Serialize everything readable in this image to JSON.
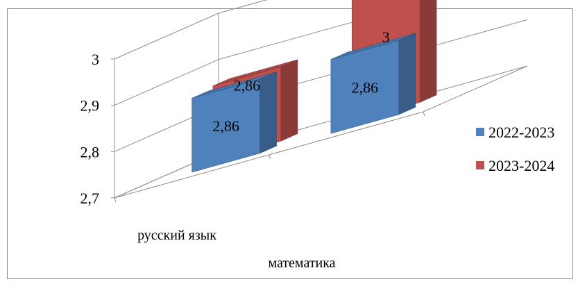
{
  "chart_data": {
    "type": "bar",
    "title": "",
    "categories": [
      "русский язык",
      "математика"
    ],
    "series": [
      {
        "name": "2022-2023",
        "values": [
          2.86,
          2.86
        ],
        "labels": [
          "2,86",
          "2,86"
        ]
      },
      {
        "name": "2023-2024",
        "values": [
          2.86,
          3.0
        ],
        "labels": [
          "2,86",
          "3"
        ]
      }
    ],
    "yticks": [
      "2,7",
      "2,8",
      "2,9",
      "3"
    ],
    "ylim": [
      2.7,
      3.0
    ],
    "legend_position": "right",
    "grid": true,
    "three_d": true
  },
  "colors": {
    "series1": "#4f81bd",
    "series2": "#c0504d",
    "grid": "#8c8c8c"
  }
}
